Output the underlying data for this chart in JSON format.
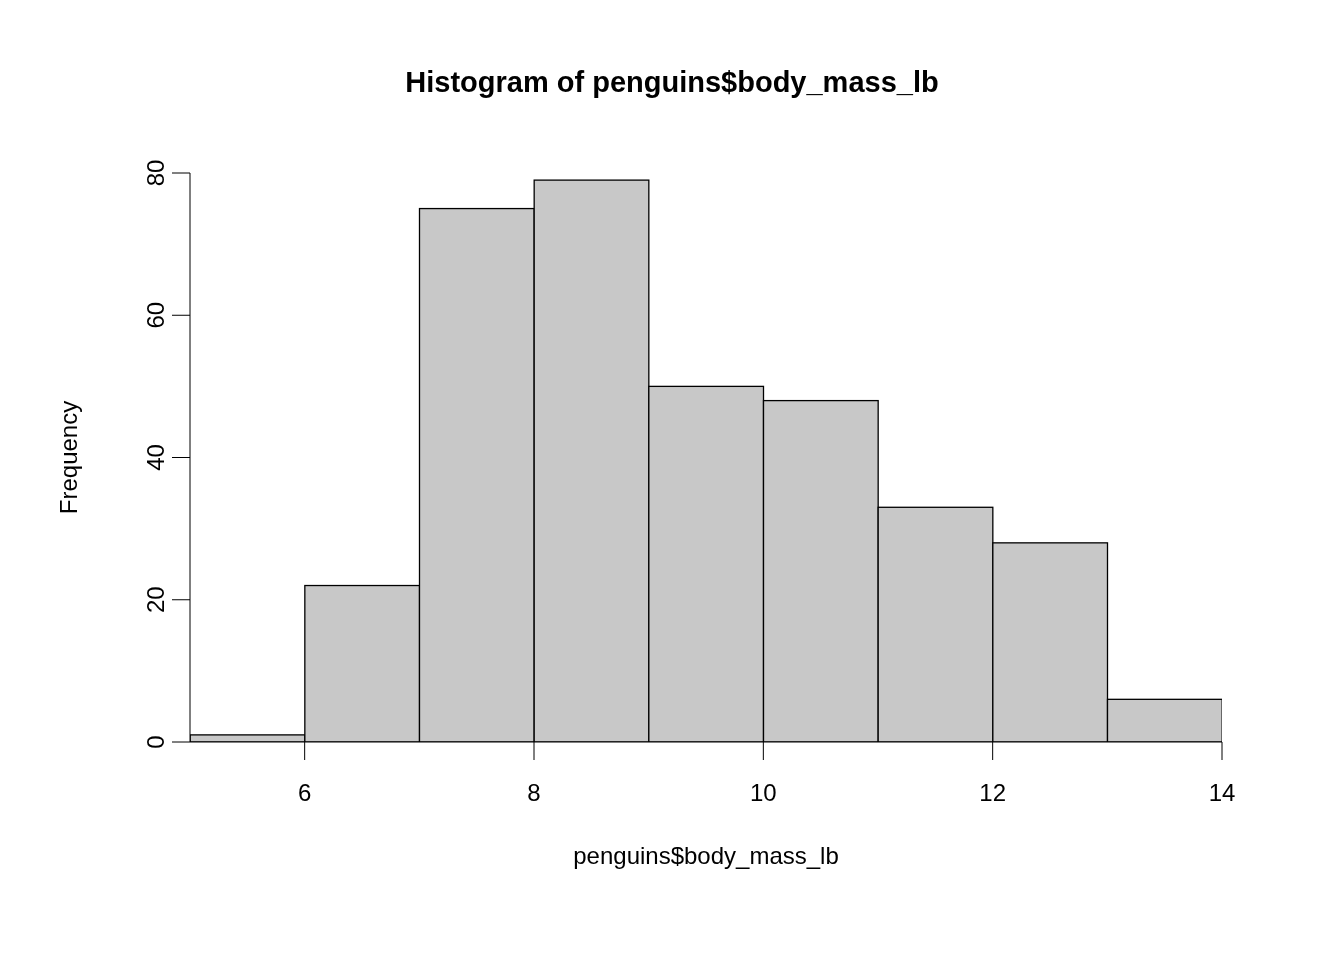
{
  "chart_data": {
    "type": "histogram",
    "title": "Histogram of penguins$body_mass_lb",
    "xlabel": "penguins$body_mass_lb",
    "ylabel": "Frequency",
    "bins": [
      5,
      6,
      7,
      8,
      9,
      10,
      11,
      12,
      13,
      14
    ],
    "values": [
      1,
      22,
      75,
      79,
      50,
      48,
      33,
      28,
      6
    ],
    "color": "#c8c8c8",
    "xlim": [
      5,
      14
    ],
    "xticks": [
      6,
      8,
      10,
      12,
      14
    ],
    "ylim": [
      0,
      80
    ],
    "yticks": [
      0,
      20,
      40,
      60,
      80
    ]
  }
}
